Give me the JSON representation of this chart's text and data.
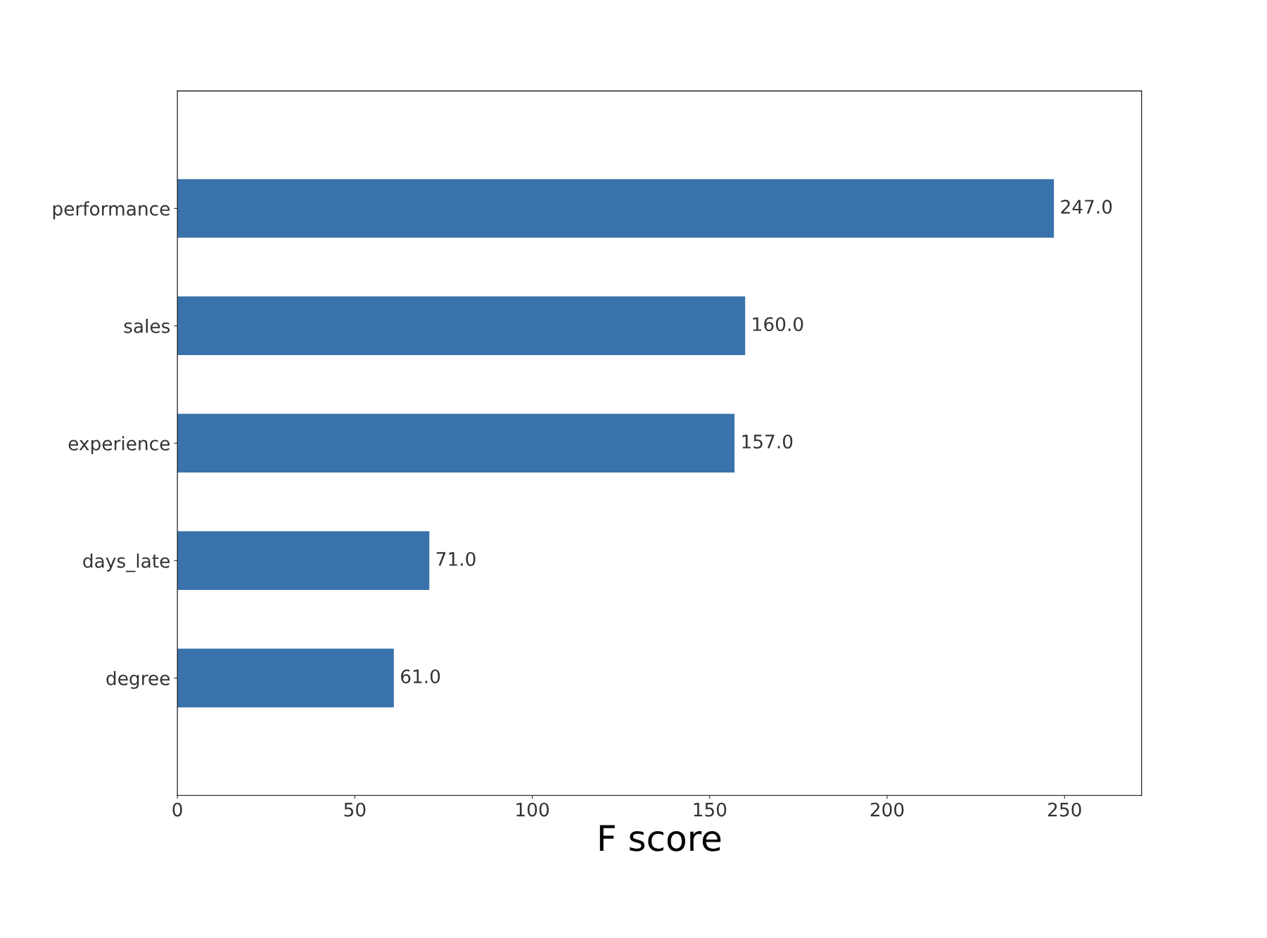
{
  "chart_data": {
    "type": "bar",
    "orientation": "horizontal",
    "xlabel": "F score",
    "categories": [
      "performance",
      "sales",
      "experience",
      "days_late",
      "degree"
    ],
    "values": [
      247,
      160,
      157,
      71,
      61
    ],
    "value_labels": [
      "247.0",
      "160.0",
      "157.0",
      "71.0",
      "61.0"
    ],
    "color": "#3a73ab",
    "xlim": [
      0,
      271.7
    ],
    "xticks": [
      0,
      50,
      100,
      150,
      200,
      250
    ],
    "grid": false,
    "legend": false
  }
}
